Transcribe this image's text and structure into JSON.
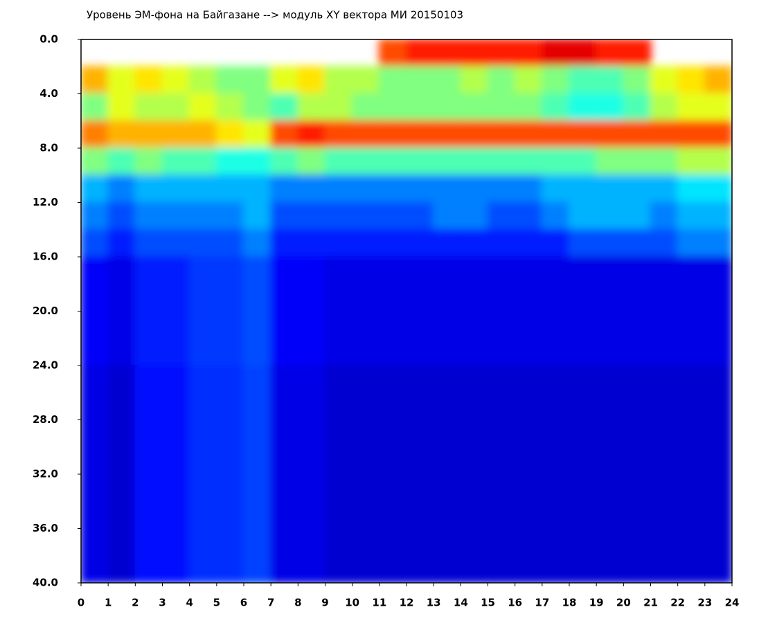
{
  "chart_data": {
    "type": "heatmap",
    "title": "Уровень ЭМ-фона на Байгазане  --> модуль XY вектора МИ  20150103",
    "colormap": "jet",
    "y_inverted": true,
    "x": [
      0,
      1,
      2,
      3,
      4,
      5,
      6,
      7,
      8,
      9,
      10,
      11,
      12,
      13,
      14,
      15,
      16,
      17,
      18,
      19,
      20,
      21,
      22,
      23
    ],
    "y": [
      0,
      2,
      4,
      6,
      8,
      10,
      12,
      14,
      16,
      18,
      20,
      22,
      24,
      26,
      28,
      30,
      32,
      34,
      36,
      38
    ],
    "z": [
      [
        null,
        null,
        null,
        null,
        null,
        null,
        null,
        null,
        null,
        null,
        null,
        0.8,
        0.85,
        0.85,
        0.85,
        0.85,
        0.85,
        0.9,
        0.9,
        0.85,
        0.85,
        null,
        null,
        null
      ],
      [
        0.7,
        0.6,
        0.65,
        0.6,
        0.55,
        0.5,
        0.5,
        0.6,
        0.65,
        0.55,
        0.55,
        0.5,
        0.5,
        0.5,
        0.55,
        0.5,
        0.55,
        0.5,
        0.45,
        0.45,
        0.5,
        0.6,
        0.65,
        0.7
      ],
      [
        0.5,
        0.6,
        0.55,
        0.55,
        0.6,
        0.55,
        0.5,
        0.45,
        0.55,
        0.55,
        0.5,
        0.5,
        0.5,
        0.5,
        0.5,
        0.5,
        0.5,
        0.45,
        0.4,
        0.4,
        0.45,
        0.55,
        0.6,
        0.6
      ],
      [
        0.75,
        0.7,
        0.7,
        0.7,
        0.7,
        0.65,
        0.6,
        0.8,
        0.85,
        0.8,
        0.8,
        0.8,
        0.8,
        0.8,
        0.8,
        0.8,
        0.8,
        0.8,
        0.8,
        0.8,
        0.8,
        0.8,
        0.8,
        0.8
      ],
      [
        0.5,
        0.45,
        0.5,
        0.45,
        0.45,
        0.4,
        0.4,
        0.45,
        0.5,
        0.45,
        0.45,
        0.45,
        0.45,
        0.45,
        0.45,
        0.45,
        0.45,
        0.45,
        0.45,
        0.5,
        0.5,
        0.5,
        0.55,
        0.55
      ],
      [
        0.3,
        0.25,
        0.3,
        0.3,
        0.3,
        0.3,
        0.3,
        0.25,
        0.25,
        0.25,
        0.25,
        0.25,
        0.25,
        0.25,
        0.25,
        0.25,
        0.25,
        0.3,
        0.3,
        0.3,
        0.3,
        0.3,
        0.35,
        0.35
      ],
      [
        0.25,
        0.2,
        0.25,
        0.25,
        0.25,
        0.25,
        0.3,
        0.2,
        0.2,
        0.2,
        0.2,
        0.2,
        0.2,
        0.25,
        0.25,
        0.2,
        0.2,
        0.25,
        0.3,
        0.3,
        0.3,
        0.25,
        0.3,
        0.3
      ],
      [
        0.2,
        0.15,
        0.2,
        0.2,
        0.2,
        0.2,
        0.25,
        0.15,
        0.15,
        0.15,
        0.15,
        0.15,
        0.15,
        0.15,
        0.15,
        0.15,
        0.15,
        0.15,
        0.2,
        0.2,
        0.2,
        0.2,
        0.25,
        0.25
      ],
      [
        0.12,
        0.1,
        0.15,
        0.15,
        0.18,
        0.18,
        0.2,
        0.12,
        0.12,
        0.1,
        0.1,
        0.1,
        0.1,
        0.1,
        0.1,
        0.1,
        0.1,
        0.1,
        0.1,
        0.1,
        0.1,
        0.1,
        0.1,
        0.1
      ],
      [
        0.12,
        0.1,
        0.15,
        0.15,
        0.18,
        0.18,
        0.2,
        0.12,
        0.12,
        0.1,
        0.1,
        0.1,
        0.1,
        0.1,
        0.1,
        0.1,
        0.1,
        0.1,
        0.1,
        0.1,
        0.1,
        0.1,
        0.1,
        0.1
      ],
      [
        0.12,
        0.1,
        0.15,
        0.15,
        0.18,
        0.18,
        0.2,
        0.12,
        0.12,
        0.1,
        0.1,
        0.1,
        0.1,
        0.1,
        0.1,
        0.1,
        0.1,
        0.1,
        0.1,
        0.1,
        0.1,
        0.1,
        0.1,
        0.1
      ],
      [
        0.12,
        0.1,
        0.15,
        0.15,
        0.18,
        0.18,
        0.2,
        0.12,
        0.12,
        0.1,
        0.1,
        0.1,
        0.1,
        0.1,
        0.1,
        0.1,
        0.1,
        0.1,
        0.1,
        0.1,
        0.1,
        0.1,
        0.1,
        0.1
      ],
      [
        0.1,
        0.08,
        0.14,
        0.14,
        0.17,
        0.17,
        0.19,
        0.1,
        0.1,
        0.08,
        0.08,
        0.08,
        0.08,
        0.08,
        0.08,
        0.08,
        0.08,
        0.08,
        0.08,
        0.08,
        0.08,
        0.08,
        0.08,
        0.08
      ],
      [
        0.1,
        0.08,
        0.14,
        0.14,
        0.17,
        0.17,
        0.19,
        0.1,
        0.1,
        0.08,
        0.08,
        0.08,
        0.08,
        0.08,
        0.08,
        0.08,
        0.08,
        0.08,
        0.08,
        0.08,
        0.08,
        0.08,
        0.08,
        0.08
      ],
      [
        0.1,
        0.08,
        0.14,
        0.14,
        0.17,
        0.17,
        0.19,
        0.1,
        0.1,
        0.08,
        0.08,
        0.08,
        0.08,
        0.08,
        0.08,
        0.08,
        0.08,
        0.08,
        0.08,
        0.08,
        0.08,
        0.08,
        0.08,
        0.08
      ],
      [
        0.1,
        0.08,
        0.14,
        0.14,
        0.17,
        0.17,
        0.19,
        0.1,
        0.1,
        0.08,
        0.08,
        0.08,
        0.08,
        0.08,
        0.08,
        0.08,
        0.08,
        0.08,
        0.08,
        0.08,
        0.08,
        0.08,
        0.08,
        0.08
      ],
      [
        0.1,
        0.08,
        0.14,
        0.14,
        0.17,
        0.17,
        0.19,
        0.1,
        0.1,
        0.08,
        0.08,
        0.08,
        0.08,
        0.08,
        0.08,
        0.08,
        0.08,
        0.08,
        0.08,
        0.08,
        0.08,
        0.08,
        0.08,
        0.08
      ],
      [
        0.1,
        0.08,
        0.14,
        0.14,
        0.17,
        0.17,
        0.19,
        0.1,
        0.1,
        0.08,
        0.08,
        0.08,
        0.08,
        0.08,
        0.08,
        0.08,
        0.08,
        0.08,
        0.08,
        0.08,
        0.08,
        0.08,
        0.08,
        0.08
      ],
      [
        0.1,
        0.08,
        0.14,
        0.14,
        0.17,
        0.17,
        0.19,
        0.1,
        0.1,
        0.08,
        0.08,
        0.08,
        0.08,
        0.08,
        0.08,
        0.08,
        0.08,
        0.08,
        0.08,
        0.08,
        0.08,
        0.08,
        0.08,
        0.08
      ],
      [
        0.1,
        0.08,
        0.14,
        0.14,
        0.17,
        0.17,
        0.19,
        0.1,
        0.1,
        0.08,
        0.08,
        0.08,
        0.08,
        0.08,
        0.08,
        0.08,
        0.08,
        0.08,
        0.08,
        0.08,
        0.08,
        0.08,
        0.08,
        0.08
      ]
    ],
    "xlim": [
      0,
      24
    ],
    "xticks": [
      0,
      1,
      2,
      3,
      4,
      5,
      6,
      7,
      8,
      9,
      10,
      11,
      12,
      13,
      14,
      15,
      16,
      17,
      18,
      19,
      20,
      21,
      22,
      23,
      24
    ],
    "ylim": [
      0,
      40
    ],
    "yticks": [
      {
        "value": 0,
        "label": "0.0"
      },
      {
        "value": 4,
        "label": "4.0"
      },
      {
        "value": 8,
        "label": "8.0"
      },
      {
        "value": 12,
        "label": "12.0"
      },
      {
        "value": 16,
        "label": "16.0"
      },
      {
        "value": 20,
        "label": "20.0"
      },
      {
        "value": 24,
        "label": "24.0"
      },
      {
        "value": 28,
        "label": "28.0"
      },
      {
        "value": 32,
        "label": "32.0"
      },
      {
        "value": 36,
        "label": "36.0"
      },
      {
        "value": 40,
        "label": "40.0"
      }
    ]
  }
}
